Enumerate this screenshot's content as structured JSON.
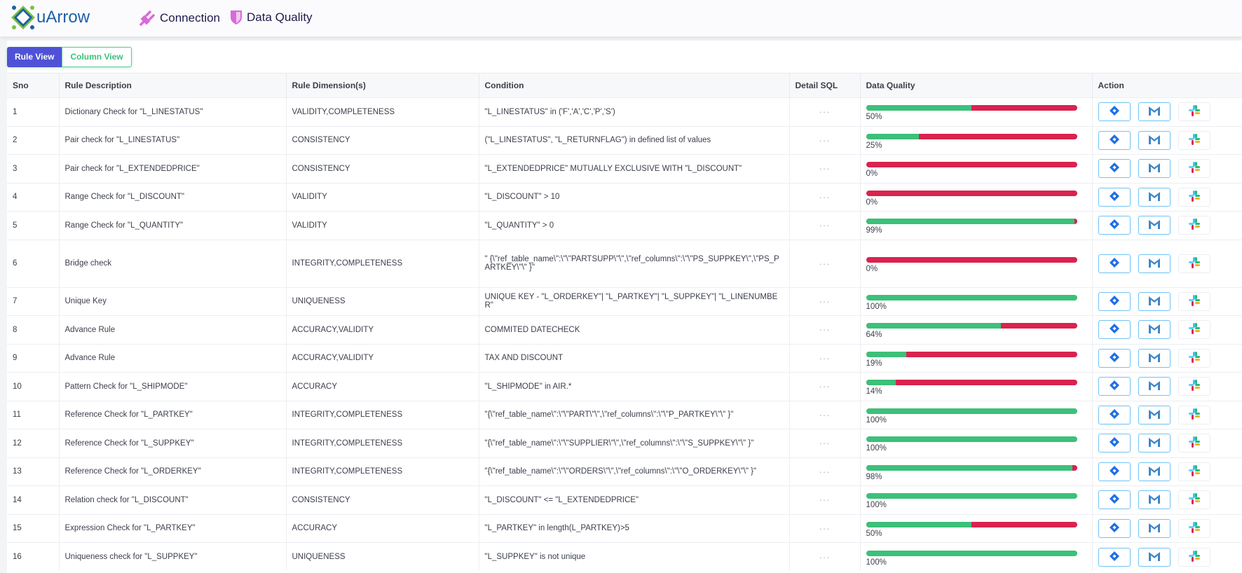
{
  "header": {
    "logo_text": "uArrow",
    "nav": [
      {
        "label": "Connection",
        "icon": "plug-icon"
      },
      {
        "label": "Data Quality",
        "icon": "shield-icon"
      }
    ]
  },
  "view_tabs": {
    "rule_view": "Rule View",
    "column_view": "Column View",
    "active": "Rule View"
  },
  "colors": {
    "good": "#3cc07a",
    "bad": "#d9234f",
    "accent": "#4f52d6"
  },
  "table": {
    "columns": [
      "Sno",
      "Rule Description",
      "Rule Dimension(s)",
      "Condition",
      "Detail SQL",
      "Data Quality",
      "Action"
    ],
    "detail_sql_label": "···",
    "rows": [
      {
        "sno": "1",
        "desc": "Dictionary Check for \"L_LINESTATUS\"",
        "dim": "VALIDITY,COMPLETENESS",
        "cond": "\"L_LINESTATUS\" in ('F','A','C','P','S')",
        "quality": 50,
        "quality_label": "50%"
      },
      {
        "sno": "2",
        "desc": "Pair check for \"L_LINESTATUS\"",
        "dim": "CONSISTENCY",
        "cond": "(\"L_LINESTATUS\", \"L_RETURNFLAG\") in defined list of values",
        "quality": 25,
        "quality_label": "25%"
      },
      {
        "sno": "3",
        "desc": "Pair check for \"L_EXTENDEDPRICE\"",
        "dim": "CONSISTENCY",
        "cond": "\"L_EXTENDEDPRICE\" MUTUALLY EXCLUSIVE WITH \"L_DISCOUNT\"",
        "quality": 0,
        "quality_label": "0%"
      },
      {
        "sno": "4",
        "desc": "Range Check for \"L_DISCOUNT\"",
        "dim": "VALIDITY",
        "cond": "\"L_DISCOUNT\" > 10",
        "quality": 0,
        "quality_label": "0%"
      },
      {
        "sno": "5",
        "desc": "Range Check for \"L_QUANTITY\"",
        "dim": "VALIDITY",
        "cond": "\"L_QUANTITY\" > 0",
        "quality": 99,
        "quality_label": "99%"
      },
      {
        "sno": "6",
        "desc": "Bridge check",
        "dim": "INTEGRITY,COMPLETENESS",
        "cond": "\" {\\\"ref_table_name\\\":\\\"\\\"PARTSUPP\\\"\\\",\\\"ref_columns\\\":\\\"\\\"PS_SUPPKEY\\\",\\\"PS_PARTKEY\\\"\\\" }\"",
        "quality": 0,
        "quality_label": "0%"
      },
      {
        "sno": "7",
        "desc": "Unique Key",
        "dim": "UNIQUENESS",
        "cond": "UNIQUE KEY - \"L_ORDERKEY\"| \"L_PARTKEY\"| \"L_SUPPKEY\"| \"L_LINENUMBER\"",
        "quality": 100,
        "quality_label": "100%"
      },
      {
        "sno": "8",
        "desc": "Advance Rule",
        "dim": "ACCURACY,VALIDITY",
        "cond": "COMMITED DATECHECK",
        "quality": 64,
        "quality_label": "64%"
      },
      {
        "sno": "9",
        "desc": "Advance Rule",
        "dim": "ACCURACY,VALIDITY",
        "cond": "TAX AND DISCOUNT",
        "quality": 19,
        "quality_label": "19%"
      },
      {
        "sno": "10",
        "desc": "Pattern Check for \"L_SHIPMODE\"",
        "dim": "ACCURACY",
        "cond": "\"L_SHIPMODE\" in AIR.*",
        "quality": 14,
        "quality_label": "14%"
      },
      {
        "sno": "11",
        "desc": "Reference Check for \"L_PARTKEY\"",
        "dim": "INTEGRITY,COMPLETENESS",
        "cond": "\"{\\\"ref_table_name\\\":\\\"\\\"PART\\\"\\\",\\\"ref_columns\\\":\\\"\\\"P_PARTKEY\\\"\\\" }\"",
        "quality": 100,
        "quality_label": "100%"
      },
      {
        "sno": "12",
        "desc": "Reference Check for \"L_SUPPKEY\"",
        "dim": "INTEGRITY,COMPLETENESS",
        "cond": "\"{\\\"ref_table_name\\\":\\\"\\\"SUPPLIER\\\"\\\",\\\"ref_columns\\\":\\\"\\\"S_SUPPKEY\\\"\\\" }\"",
        "quality": 100,
        "quality_label": "100%"
      },
      {
        "sno": "13",
        "desc": "Reference Check for \"L_ORDERKEY\"",
        "dim": "INTEGRITY,COMPLETENESS",
        "cond": "\"{\\\"ref_table_name\\\":\\\"\\\"ORDERS\\\"\\\",\\\"ref_columns\\\":\\\"\\\"O_ORDERKEY\\\"\\\" }\"",
        "quality": 98,
        "quality_label": "98%"
      },
      {
        "sno": "14",
        "desc": "Relation check for \"L_DISCOUNT\"",
        "dim": "CONSISTENCY",
        "cond": "\"L_DISCOUNT\" <= \"L_EXTENDEDPRICE\"",
        "quality": 100,
        "quality_label": "100%"
      },
      {
        "sno": "15",
        "desc": "Expression Check for \"L_PARTKEY\"",
        "dim": "ACCURACY",
        "cond": "\"L_PARTKEY\" in length(L_PARTKEY)>5",
        "quality": 50,
        "quality_label": "50%"
      },
      {
        "sno": "16",
        "desc": "Uniqueness check for \"L_SUPPKEY\"",
        "dim": "UNIQUENESS",
        "cond": "\"L_SUPPKEY\" is not unique",
        "quality": 100,
        "quality_label": "100%"
      }
    ],
    "actions": [
      {
        "icon": "jira-icon"
      },
      {
        "icon": "gmail-icon"
      },
      {
        "icon": "slack-icon"
      }
    ]
  }
}
